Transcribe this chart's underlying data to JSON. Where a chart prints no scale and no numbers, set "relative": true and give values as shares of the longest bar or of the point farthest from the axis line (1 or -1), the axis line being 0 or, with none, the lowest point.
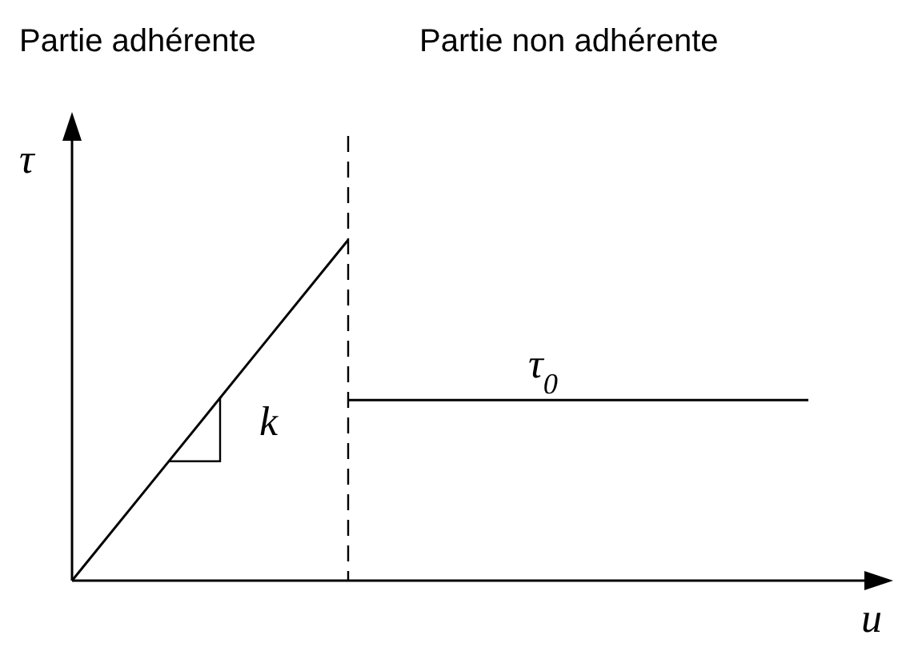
{
  "chart_data": {
    "type": "line",
    "relative": true,
    "xlabel": "u",
    "ylabel": "τ",
    "categories": [
      null,
      null,
      null,
      null,
      null,
      null,
      null,
      null,
      null
    ],
    "series": [
      {
        "color": "#000000",
        "values": [
          0,
          0.333,
          0.667,
          1,
          null,
          null,
          null,
          null,
          null
        ]
      },
      {
        "color": "#000000",
        "values": [
          null,
          null,
          null,
          0.53,
          0.53,
          0.53,
          0.53,
          0.53,
          0.53
        ]
      }
    ],
    "annotations": [
      "Partie adhérente",
      "Partie non adhérente",
      "k",
      "τ$_{0}$"
    ]
  }
}
